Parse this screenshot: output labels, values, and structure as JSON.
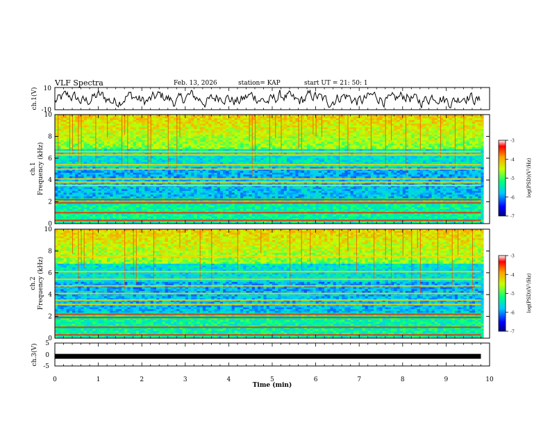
{
  "header": {
    "title": "VLF Spectra",
    "date": "Feb. 13, 2026",
    "station": "station= KAP",
    "start_ut": "start  UT  =   21: 50: 1"
  },
  "chart_data": [
    {
      "type": "line",
      "panel": "ch1-waveform",
      "ylabel": "ch.1(V)",
      "ylim": [
        -10,
        10
      ],
      "yticks": [
        "10",
        "-10"
      ],
      "description_series": "amplitude waveform",
      "x_range_min": [
        0,
        9.8
      ]
    },
    {
      "type": "heatmap",
      "panel": "ch1-spectrogram",
      "ylabel": "ch.1\nFrequency (kHz)",
      "ylabel_lines": [
        "ch.1",
        "Frequency (kHz)"
      ],
      "ylim": [
        0,
        10
      ],
      "yticks": [
        "0",
        "2",
        "4",
        "6",
        "8",
        "10"
      ],
      "colorbar": {
        "label": "log(PSD)(V²/Hz)",
        "range": [
          -7,
          -3
        ],
        "ticks": [
          "-3",
          "-4",
          "-5",
          "-6",
          "-7"
        ]
      },
      "bands_khz": [
        0.3,
        1.0,
        1.9,
        2.2,
        3.5,
        3.8,
        4.1,
        5.0,
        5.4,
        6.3,
        6.6
      ]
    },
    {
      "type": "heatmap",
      "panel": "ch2-spectrogram",
      "ylabel": "ch.2\nFrequency (kHz)",
      "ylabel_lines": [
        "ch.2",
        "Frequency (kHz)"
      ],
      "ylim": [
        0,
        10
      ],
      "yticks": [
        "0",
        "2",
        "4",
        "6",
        "8",
        "10"
      ],
      "colorbar": {
        "label": "log(PSD)(V²/Hz)",
        "range": [
          -7,
          -3
        ],
        "ticks": [
          "-3",
          "-4",
          "-5",
          "-6",
          "-7"
        ]
      },
      "bands_khz": [
        0.3,
        1.0,
        1.9,
        2.2,
        3.1,
        3.5,
        4.1,
        4.8,
        5.4,
        6.1,
        7.5
      ]
    },
    {
      "type": "line",
      "panel": "ch3-waveform",
      "ylabel": "ch.3(V)",
      "ylim": [
        -5,
        5
      ],
      "yticks": [
        "5",
        "0",
        "-5"
      ],
      "constant_value": -0.8,
      "x_range_min": [
        0,
        9.8
      ]
    }
  ],
  "xaxis": {
    "label": "Time  (min)",
    "range": [
      0,
      10
    ],
    "ticks": [
      "0",
      "1",
      "2",
      "3",
      "4",
      "5",
      "6",
      "7",
      "8",
      "9",
      "10"
    ]
  }
}
